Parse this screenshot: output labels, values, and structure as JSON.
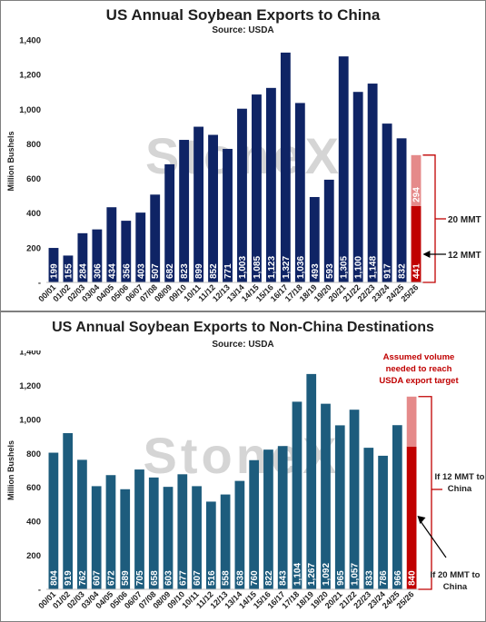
{
  "colors": {
    "china_bar": "#0f2465",
    "nonchina_bar": "#1d5c7d",
    "projection_dark": "#c00000",
    "projection_light": "#e58a8a",
    "annotation_red": "#c00000",
    "axis_text": "#1f1f1f",
    "watermark": "#b3b3b3"
  },
  "watermark_text": "StoneX",
  "chart_data": [
    {
      "type": "bar",
      "title": "US Annual Soybean Exports to China",
      "subtitle": "Source: USDA",
      "ylabel": "Million Bushels",
      "xlabel": "",
      "ylim": [
        0,
        1400
      ],
      "yticks": [
        {
          "value": 0,
          "label": "-"
        },
        {
          "value": 200,
          "label": "200"
        },
        {
          "value": 400,
          "label": "400"
        },
        {
          "value": 600,
          "label": "600"
        },
        {
          "value": 800,
          "label": "800"
        },
        {
          "value": 1000,
          "label": "1,000"
        },
        {
          "value": 1200,
          "label": "1,200"
        },
        {
          "value": 1400,
          "label": "1,400"
        }
      ],
      "grid": false,
      "legend": "none",
      "categories": [
        "00/01",
        "01/02",
        "02/03",
        "03/04",
        "04/05",
        "05/06",
        "06/07",
        "07/08",
        "08/09",
        "09/10",
        "10/11",
        "11/12",
        "12/13",
        "13/14",
        "14/15",
        "15/16",
        "16/17",
        "17/18",
        "18/19",
        "19/20",
        "20/21",
        "21/22",
        "22/23",
        "23/24",
        "24/25",
        "25/26"
      ],
      "values": [
        199,
        155,
        284,
        306,
        434,
        356,
        403,
        507,
        682,
        823,
        899,
        852,
        771,
        1003,
        1085,
        1123,
        1327,
        1036,
        493,
        593,
        1305,
        1100,
        1148,
        917,
        832,
        null
      ],
      "labels": [
        "199",
        "155",
        "284",
        "306",
        "434",
        "356",
        "403",
        "507",
        "682",
        "823",
        "899",
        "852",
        "771",
        "1,003",
        "1,085",
        "1,123",
        "1,327",
        "1,036",
        "493",
        "593",
        "1,305",
        "1,100",
        "1,148",
        "917",
        "832",
        ""
      ],
      "projection": {
        "category": "25/26",
        "base": {
          "value": 441,
          "label": "441"
        },
        "top": {
          "value": 294,
          "label": "294"
        }
      },
      "annotations": [
        {
          "text": "20 MMT",
          "arrow": "bracket"
        },
        {
          "text": "12 MMT",
          "arrow": "left"
        }
      ]
    },
    {
      "type": "bar",
      "title": "US Annual Soybean Exports to Non-China Destinations",
      "subtitle": "Source: USDA",
      "ylabel": "Million Bushels",
      "xlabel": "",
      "ylim": [
        0,
        1400
      ],
      "yticks": [
        {
          "value": 0,
          "label": "-"
        },
        {
          "value": 200,
          "label": "200"
        },
        {
          "value": 400,
          "label": "400"
        },
        {
          "value": 600,
          "label": "600"
        },
        {
          "value": 800,
          "label": "800"
        },
        {
          "value": 1000,
          "label": "1,000"
        },
        {
          "value": 1200,
          "label": "1,200"
        },
        {
          "value": 1400,
          "label": "1,400"
        }
      ],
      "grid": false,
      "legend": "none",
      "categories": [
        "00/01",
        "01/02",
        "02/03",
        "03/04",
        "04/05",
        "05/06",
        "06/07",
        "07/08",
        "08/09",
        "09/10",
        "10/11",
        "11/12",
        "12/13",
        "13/14",
        "14/15",
        "15/16",
        "16/17",
        "17/18",
        "18/19",
        "19/20",
        "20/21",
        "21/22",
        "22/23",
        "23/24",
        "24/25",
        "25/26"
      ],
      "values": [
        804,
        919,
        762,
        607,
        672,
        589,
        705,
        658,
        603,
        677,
        607,
        516,
        558,
        638,
        760,
        822,
        843,
        1104,
        1267,
        1092,
        965,
        1057,
        833,
        786,
        966,
        null
      ],
      "labels": [
        "804",
        "919",
        "762",
        "607",
        "672",
        "589",
        "705",
        "658",
        "603",
        "677",
        "607",
        "516",
        "558",
        "638",
        "760",
        "822",
        "843",
        "1,104",
        "1,267",
        "1,092",
        "965",
        "1,057",
        "833",
        "786",
        "966",
        ""
      ],
      "projection": {
        "category": "25/26",
        "base": {
          "value": 840,
          "label": "840"
        },
        "top": {
          "value": 294,
          "label": ""
        }
      },
      "annotations": [
        {
          "text": "Assumed volume needed to reach USDA export target",
          "lines": [
            "Assumed volume",
            "needed to reach",
            "USDA export target"
          ]
        },
        {
          "text": "If 12 MMT to China",
          "lines": [
            "If 12 MMT to",
            "China"
          ]
        },
        {
          "text": "If 20 MMT to China",
          "lines": [
            "If 20 MMT to",
            "China"
          ]
        }
      ]
    }
  ]
}
